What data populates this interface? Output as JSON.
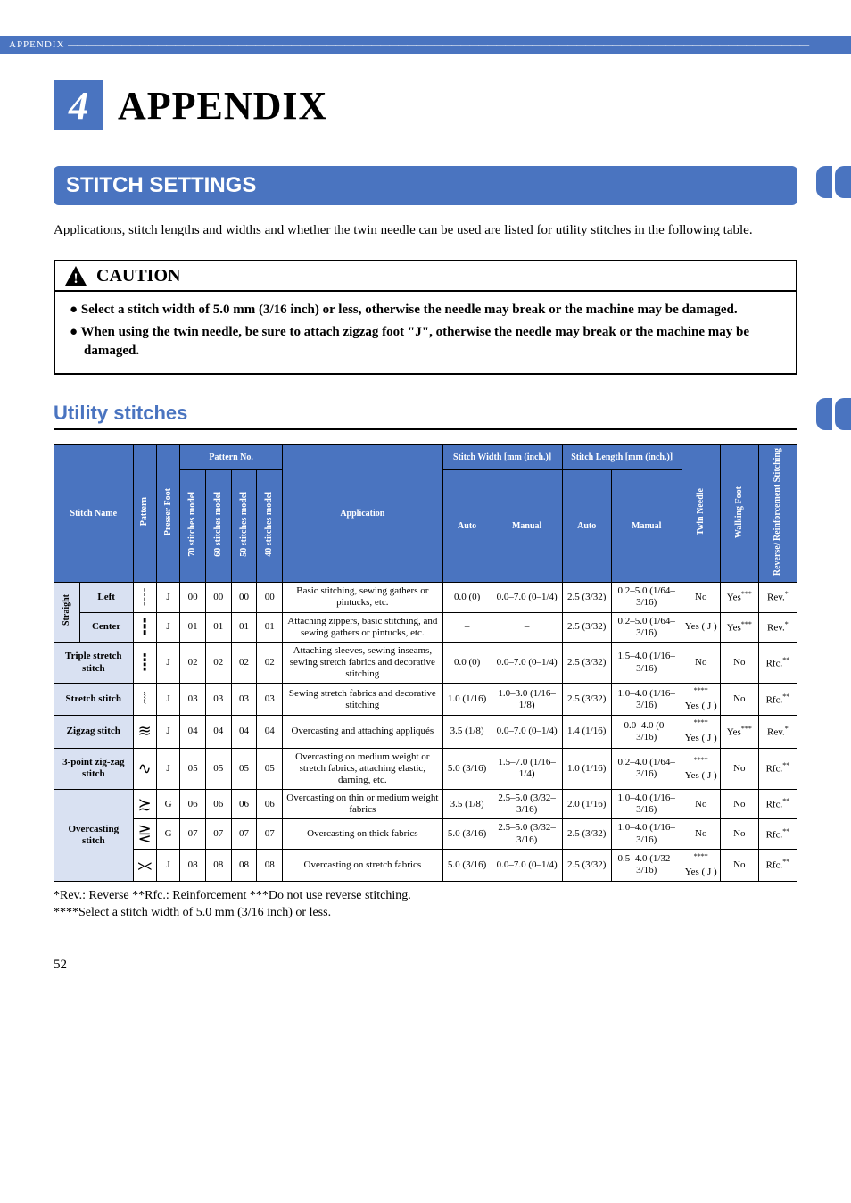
{
  "header": {
    "label": "APPENDIX"
  },
  "chapter": {
    "number": "4",
    "title": "APPENDIX"
  },
  "section": {
    "title": "STITCH SETTINGS"
  },
  "intro": "Applications, stitch lengths and widths and whether the twin needle can be used are listed for utility stitches in the following table.",
  "caution": {
    "label": "CAUTION",
    "items": [
      "Select a stitch width of 5.0 mm (3/16 inch) or less, otherwise the needle may break or the machine may be damaged.",
      "When using the twin needle, be sure to attach zigzag foot \"J\", otherwise the needle may break or the machine may be damaged."
    ]
  },
  "subsection": "Utility stitches",
  "tableHeaders": {
    "stitchName": "Stitch Name",
    "pattern": "Pattern",
    "presserFoot": "Presser Foot",
    "patternNo": "Pattern No.",
    "m70": "70 stitches model",
    "m60": "60 stitches model",
    "m50": "50 stitches model",
    "m40": "40 stitches model",
    "application": "Application",
    "stitchWidth": "Stitch Width [mm (inch.)]",
    "stitchLength": "Stitch Length [mm (inch.)]",
    "auto": "Auto",
    "manual": "Manual",
    "twinNeedle": "Twin Needle",
    "walkingFoot": "Walking Foot",
    "reverse": "Reverse/ Reinforcement Stitching"
  },
  "rows": [
    {
      "group": "Straight",
      "sub": "Left",
      "foot": "J",
      "p70": "00",
      "p60": "00",
      "p50": "00",
      "p40": "00",
      "app": "Basic stitching, sewing gathers or pintucks, etc.",
      "wAuto": "0.0 (0)",
      "wMan": "0.0–7.0 (0–1/4)",
      "lAuto": "2.5 (3/32)",
      "lMan": "0.2–5.0 (1/64–3/16)",
      "twin": "No",
      "walk": "Yes",
      "walkSup": "***",
      "rev": "Rev.",
      "revSup": "*"
    },
    {
      "group": "Straight",
      "sub": "Center",
      "foot": "J",
      "p70": "01",
      "p60": "01",
      "p50": "01",
      "p40": "01",
      "app": "Attaching zippers, basic stitching, and sewing gathers or pintucks, etc.",
      "wAuto": "–",
      "wMan": "–",
      "lAuto": "2.5 (3/32)",
      "lMan": "0.2–5.0 (1/64–3/16)",
      "twin": "Yes ( J )",
      "walk": "Yes",
      "walkSup": "***",
      "rev": "Rev.",
      "revSup": "*"
    },
    {
      "group": "Triple stretch stitch",
      "foot": "J",
      "p70": "02",
      "p60": "02",
      "p50": "02",
      "p40": "02",
      "app": "Attaching sleeves, sewing inseams, sewing stretch fabrics and decorative stitching",
      "wAuto": "0.0 (0)",
      "wMan": "0.0–7.0 (0–1/4)",
      "lAuto": "2.5 (3/32)",
      "lMan": "1.5–4.0 (1/16–3/16)",
      "twin": "No",
      "walk": "No",
      "rev": "Rfc.",
      "revSup": "**"
    },
    {
      "group": "Stretch stitch",
      "foot": "J",
      "p70": "03",
      "p60": "03",
      "p50": "03",
      "p40": "03",
      "app": "Sewing stretch fabrics and decorative stitching",
      "wAuto": "1.0 (1/16)",
      "wMan": "1.0–3.0 (1/16–1/8)",
      "lAuto": "2.5 (3/32)",
      "lMan": "1.0–4.0 (1/16–3/16)",
      "twin": "Yes ( J )",
      "twinSup": "****",
      "walk": "No",
      "rev": "Rfc.",
      "revSup": "**"
    },
    {
      "group": "Zigzag stitch",
      "foot": "J",
      "p70": "04",
      "p60": "04",
      "p50": "04",
      "p40": "04",
      "app": "Overcasting and attaching appliqués",
      "wAuto": "3.5 (1/8)",
      "wMan": "0.0–7.0 (0–1/4)",
      "lAuto": "1.4 (1/16)",
      "lMan": "0.0–4.0 (0–3/16)",
      "twin": "Yes ( J )",
      "twinSup": "****",
      "walk": "Yes",
      "walkSup": "***",
      "rev": "Rev.",
      "revSup": "*"
    },
    {
      "group": "3-point zig-zag stitch",
      "foot": "J",
      "p70": "05",
      "p60": "05",
      "p50": "05",
      "p40": "05",
      "app": "Overcasting on medium weight or stretch fabrics, attaching elastic, darning, etc.",
      "wAuto": "5.0 (3/16)",
      "wMan": "1.5–7.0 (1/16–1/4)",
      "lAuto": "1.0 (1/16)",
      "lMan": "0.2–4.0 (1/64–3/16)",
      "twin": "Yes ( J )",
      "twinSup": "****",
      "walk": "No",
      "rev": "Rfc.",
      "revSup": "**"
    },
    {
      "group": "Overcasting stitch",
      "sub": "a",
      "foot": "G",
      "p70": "06",
      "p60": "06",
      "p50": "06",
      "p40": "06",
      "app": "Overcasting on thin or medium weight fabrics",
      "wAuto": "3.5 (1/8)",
      "wMan": "2.5–5.0 (3/32–3/16)",
      "lAuto": "2.0 (1/16)",
      "lMan": "1.0–4.0 (1/16–3/16)",
      "twin": "No",
      "walk": "No",
      "rev": "Rfc.",
      "revSup": "**"
    },
    {
      "group": "Overcasting stitch",
      "sub": "b",
      "foot": "G",
      "p70": "07",
      "p60": "07",
      "p50": "07",
      "p40": "07",
      "app": "Overcasting on thick fabrics",
      "wAuto": "5.0 (3/16)",
      "wMan": "2.5–5.0 (3/32–3/16)",
      "lAuto": "2.5 (3/32)",
      "lMan": "1.0–4.0 (1/16–3/16)",
      "twin": "No",
      "walk": "No",
      "rev": "Rfc.",
      "revSup": "**"
    },
    {
      "group": "Overcasting stitch",
      "sub": "c",
      "foot": "J",
      "p70": "08",
      "p60": "08",
      "p50": "08",
      "p40": "08",
      "app": "Overcasting on stretch fabrics",
      "wAuto": "5.0 (3/16)",
      "wMan": "0.0–7.0 (0–1/4)",
      "lAuto": "2.5 (3/32)",
      "lMan": "0.5–4.0 (1/32–3/16)",
      "twin": "Yes ( J )",
      "twinSup": "****",
      "walk": "No",
      "rev": "Rfc.",
      "revSup": "**"
    }
  ],
  "footnotes": {
    "line1": "*Rev.: Reverse      **Rfc.: Reinforcement      ***Do not use reverse stitching.",
    "line2": "****Select a stitch width of 5.0 mm (3/16 inch) or less."
  },
  "pageNumber": "52",
  "colors": {
    "primary": "#4a74c0",
    "headerBg": "#d9e1f2"
  }
}
